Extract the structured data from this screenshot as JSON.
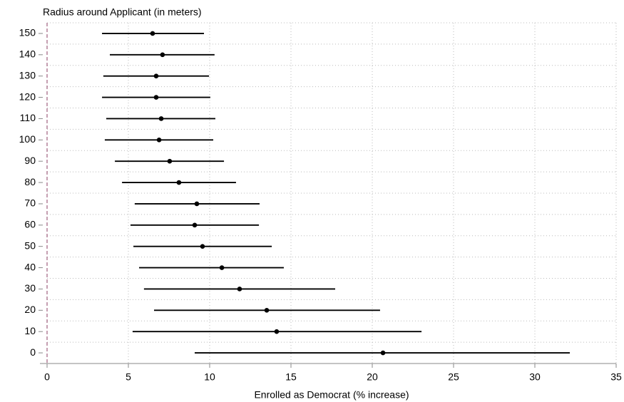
{
  "chart_data": {
    "type": "errorbar",
    "ylabel": "Radius around Applicant (in meters)",
    "xlabel": "Enrolled as Democrat (% increase)",
    "categories": [
      0,
      10,
      20,
      30,
      40,
      50,
      60,
      70,
      80,
      90,
      100,
      110,
      120,
      130,
      140,
      150
    ],
    "series": [
      {
        "color": "#000000",
        "values": [
          20.66,
          14.12,
          13.51,
          11.84,
          10.75,
          9.56,
          9.08,
          9.21,
          8.11,
          7.54,
          6.89,
          7.02,
          6.71,
          6.71,
          7.1,
          6.49
        ],
        "lower": [
          9.08,
          5.26,
          6.58,
          5.96,
          5.66,
          5.31,
          5.13,
          5.39,
          4.61,
          4.17,
          3.55,
          3.64,
          3.38,
          3.46,
          3.86,
          3.38
        ],
        "upper": [
          32.15,
          23.03,
          20.48,
          17.72,
          14.56,
          13.82,
          13.03,
          13.07,
          11.62,
          10.88,
          10.22,
          10.35,
          10.04,
          9.96,
          10.3,
          9.65
        ]
      }
    ],
    "xlim": [
      0,
      35
    ],
    "xticks": [
      0,
      5,
      10,
      15,
      20,
      25,
      30,
      35
    ],
    "xline": 0,
    "xline_color": "#a0607e",
    "grid": true
  }
}
